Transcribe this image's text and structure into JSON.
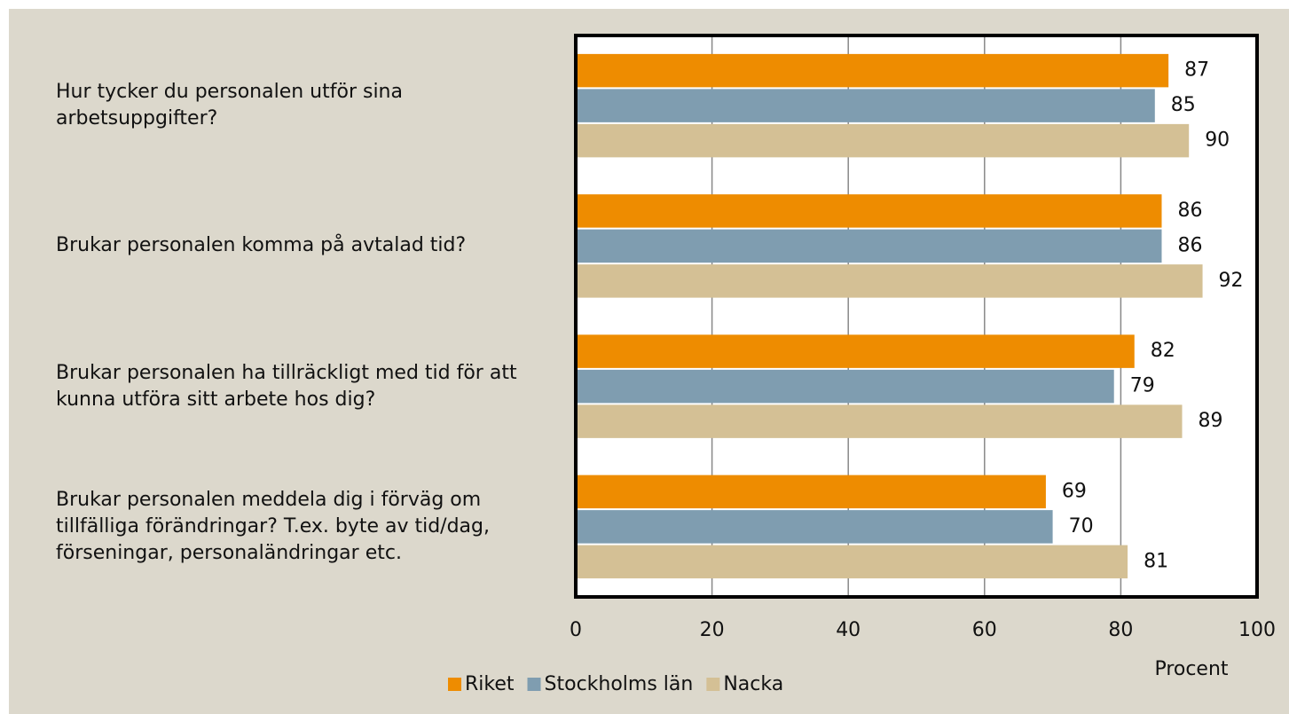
{
  "chart_data": {
    "type": "barh",
    "categories": [
      "Hur tycker du personalen utför sina arbetsuppgifter?",
      "Brukar personalen komma på avtalad tid?",
      "Brukar personalen ha tillräckligt med tid för att kunna utföra sitt arbete hos dig?",
      "Brukar personalen meddela dig i förväg om tillfälliga förändringar? T.ex. byte av tid/dag, förseningar, personaländringar etc."
    ],
    "series": [
      {
        "name": "Riket",
        "color": "#ee8c00",
        "values": [
          87,
          86,
          82,
          69
        ]
      },
      {
        "name": "Stockholms län",
        "color": "#7f9db0",
        "values": [
          85,
          86,
          79,
          70
        ]
      },
      {
        "name": "Nacka",
        "color": "#d4c095",
        "values": [
          90,
          92,
          89,
          81
        ]
      }
    ],
    "xlabel": "Procent",
    "xlim": [
      0,
      100
    ],
    "xticks": [
      0,
      20,
      40,
      60,
      80,
      100
    ],
    "grid": true,
    "legend": "bottom"
  }
}
